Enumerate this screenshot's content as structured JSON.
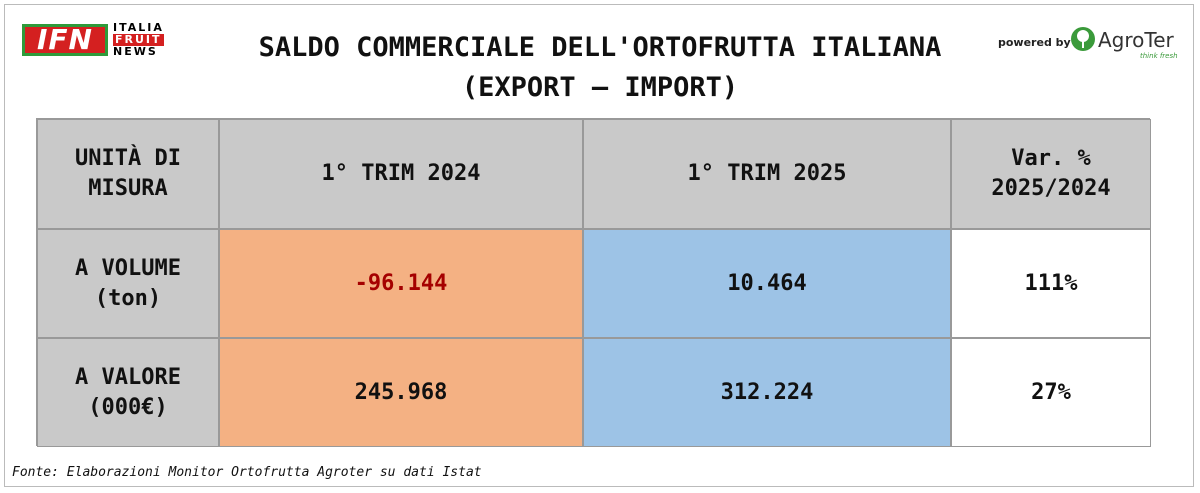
{
  "header": {
    "logo": {
      "mark": "IFN",
      "lines": [
        "ITALIA",
        "FRUIT",
        "NEWS"
      ]
    },
    "title": [
      "SALDO COMMERCIALE DELL'ORTOFRUTTA ITALIANA",
      "(EXPORT – IMPORT)"
    ],
    "sponsor": {
      "label": "powered by",
      "name": "AgroTer",
      "tagline": "think fresh"
    }
  },
  "table": {
    "columns": [
      [
        "UNITÀ DI",
        "MISURA"
      ],
      [
        "1° TRIM 2024"
      ],
      [
        "1° TRIM 2025"
      ],
      [
        "Var. %",
        "2025/2024"
      ]
    ],
    "rows": [
      [
        [
          "A VOLUME",
          "(ton)"
        ],
        "-96.144",
        "10.464",
        "111%"
      ],
      [
        [
          "A VALORE",
          "(000€)"
        ],
        "245.968",
        "312.224",
        "27%"
      ]
    ]
  },
  "footer": {
    "source": "Fonte: Elaborazioni Monitor Ortofrutta Agroter su dati Istat"
  }
}
